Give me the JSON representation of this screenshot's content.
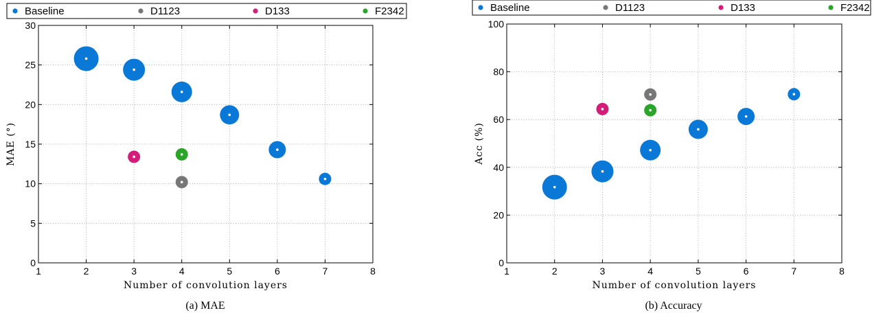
{
  "chart_data": [
    {
      "type": "scatter",
      "caption": "(a)  MAE",
      "xlabel": "Number of convolution layers",
      "ylabel": "MAE (°)",
      "xlim": [
        1,
        8
      ],
      "ylim": [
        0,
        30
      ],
      "xticks": [
        1,
        2,
        3,
        4,
        5,
        6,
        7,
        8
      ],
      "yticks": [
        0,
        5,
        10,
        15,
        20,
        25,
        30
      ],
      "grid": true,
      "legend": "top, horizontal, outside plot",
      "series": [
        {
          "name": "Baseline",
          "color": "#0a78d7",
          "points": [
            {
              "x": 2,
              "y": 25.8
            },
            {
              "x": 3,
              "y": 24.4
            },
            {
              "x": 4,
              "y": 21.6
            },
            {
              "x": 5,
              "y": 18.7
            },
            {
              "x": 6,
              "y": 14.3
            },
            {
              "x": 7,
              "y": 10.6
            }
          ]
        },
        {
          "name": "D1123",
          "color": "#777777",
          "points": [
            {
              "x": 4,
              "y": 10.2
            }
          ]
        },
        {
          "name": "D133",
          "color": "#d41d79",
          "points": [
            {
              "x": 3,
              "y": 13.4
            }
          ]
        },
        {
          "name": "F2342",
          "color": "#2aa52a",
          "points": [
            {
              "x": 4,
              "y": 13.7
            }
          ]
        }
      ]
    },
    {
      "type": "scatter",
      "caption": "(b)  Accuracy",
      "xlabel": "Number of convolution layers",
      "ylabel": "Acc (%)",
      "xlim": [
        1,
        8
      ],
      "ylim": [
        0,
        100
      ],
      "xticks": [
        1,
        2,
        3,
        4,
        5,
        6,
        7,
        8
      ],
      "yticks": [
        0,
        20,
        40,
        60,
        80,
        100
      ],
      "grid": true,
      "legend": "top, horizontal, outside plot",
      "series": [
        {
          "name": "Baseline",
          "color": "#0a78d7",
          "points": [
            {
              "x": 2,
              "y": 31.7
            },
            {
              "x": 3,
              "y": 38.3
            },
            {
              "x": 4,
              "y": 47.2
            },
            {
              "x": 5,
              "y": 55.9
            },
            {
              "x": 6,
              "y": 61.3
            },
            {
              "x": 7,
              "y": 70.6
            }
          ]
        },
        {
          "name": "D1123",
          "color": "#777777",
          "points": [
            {
              "x": 4,
              "y": 70.5
            }
          ]
        },
        {
          "name": "D133",
          "color": "#d41d79",
          "points": [
            {
              "x": 3,
              "y": 64.4
            }
          ]
        },
        {
          "name": "F2342",
          "color": "#2aa52a",
          "points": [
            {
              "x": 4,
              "y": 63.9
            }
          ]
        }
      ]
    }
  ]
}
